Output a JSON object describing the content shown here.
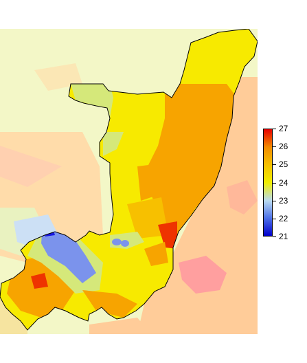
{
  "map": {
    "background_colors": {
      "north": "#f3f7c7",
      "east": "#ffcc99",
      "southeast_patch": "#ff9f9f",
      "west": "#ffdcaa",
      "southwest_lake": "#cce0f5"
    },
    "country_colors": {
      "base": "#f7ea00",
      "warm": "#f7a400",
      "hot": "#ee3300",
      "cool": "#d5e87a",
      "cold": "#7b93ec",
      "coldest": "#1919e0"
    }
  },
  "legend": {
    "ticks": [
      "27",
      "26",
      "25",
      "24",
      "23",
      "22",
      "21"
    ],
    "min": 21,
    "max": 27,
    "gradient": [
      "#0000cc",
      "#6f9cf0",
      "#c8e6a0",
      "#f0ee00",
      "#f6c000",
      "#f28c00",
      "#e60000"
    ]
  }
}
